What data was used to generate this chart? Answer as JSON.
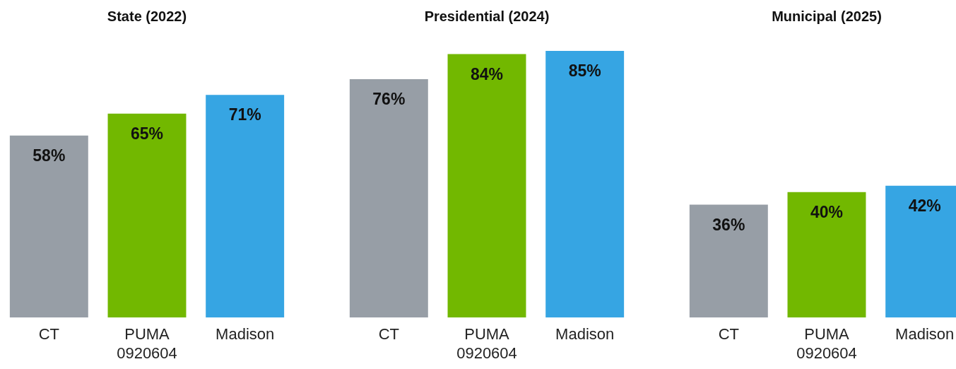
{
  "chart_data": [
    {
      "type": "bar",
      "title": "State (2022)",
      "categories": [
        "CT",
        "PUMA 0920604",
        "Madison"
      ],
      "values": [
        58,
        65,
        71
      ],
      "colors": [
        "#979ea6",
        "#72b800",
        "#36a5e3"
      ],
      "value_labels": [
        "58%",
        "65%",
        "71%"
      ]
    },
    {
      "type": "bar",
      "title": "Presidential (2024)",
      "categories": [
        "CT",
        "PUMA 0920604",
        "Madison"
      ],
      "values": [
        76,
        84,
        85
      ],
      "colors": [
        "#979ea6",
        "#72b800",
        "#36a5e3"
      ],
      "value_labels": [
        "76%",
        "84%",
        "85%"
      ]
    },
    {
      "type": "bar",
      "title": "Municipal (2025)",
      "categories": [
        "CT",
        "PUMA 0920604",
        "Madison"
      ],
      "values": [
        36,
        40,
        42
      ],
      "colors": [
        "#979ea6",
        "#72b800",
        "#36a5e3"
      ],
      "value_labels": [
        "36%",
        "40%",
        "42%"
      ]
    }
  ]
}
